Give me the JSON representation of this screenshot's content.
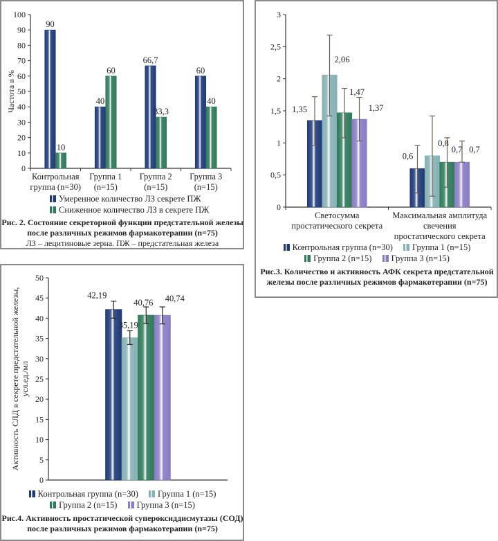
{
  "chart_data": [
    {
      "id": "fig2",
      "type": "bar",
      "ylabel": "Частота в %",
      "ylim": [
        0,
        100
      ],
      "yticks": [
        "0",
        "10",
        "20",
        "30",
        "40",
        "50",
        "60",
        "70",
        "80",
        "90",
        "100"
      ],
      "categories": [
        "Контрольная группа (n=30)",
        "Группа 1 (n=15)",
        "Группа 2 (n=15)",
        "Группа 3 (n=15)"
      ],
      "category_lines": [
        [
          "Контрольная",
          "группа (n=30)"
        ],
        [
          "Группа 1",
          "(n=15)"
        ],
        [
          "Группа 2",
          "(n=15)"
        ],
        [
          "Группа 3",
          "(n=15)"
        ]
      ],
      "series": [
        {
          "name": "Умеренное количество ЛЗ  секрете ПЖ",
          "values": [
            90,
            40,
            66.7,
            60
          ],
          "labels": [
            "90",
            "40",
            "66,7",
            "60"
          ],
          "color": "#1f3a78"
        },
        {
          "name": "Сниженное количество ЛЗ в секрете ПЖ",
          "values": [
            10,
            60,
            33.3,
            40
          ],
          "labels": [
            "10",
            "60",
            "33,3",
            "40"
          ],
          "color": "#2f7a5a"
        }
      ],
      "legend_position": "bottom",
      "grid": false,
      "caption_bold": "Рис. 2. Состояние секреторной функции предстательной железы после различных режимов фармакотерапии (n=75)",
      "caption_bold_lines": [
        "Рис. 2. Состояние секреторной функции предстательной железы",
        "после различных режимов фармакотерапии (n=75)"
      ],
      "caption_note": "ЛЗ – лецитиновые зерна. ПЖ – предстательная железа"
    },
    {
      "id": "fig3",
      "type": "bar",
      "ylim": [
        0,
        3
      ],
      "yticks": [
        "0",
        "0,5",
        "1",
        "1,5",
        "2",
        "2,5",
        "3"
      ],
      "categories": [
        "Светосумма простатического секрета",
        "Максимальная амплитуда свечения простатического секрета"
      ],
      "category_lines": [
        [
          "Светосумма",
          "простатического секрета"
        ],
        [
          "Максимальная амплитуда",
          "свечения",
          "простатического секрета"
        ]
      ],
      "series": [
        {
          "name": "Контрольная группа (n=30)",
          "values": [
            1.35,
            0.6
          ],
          "labels": [
            "1,35",
            "0,6"
          ],
          "error_low": [
            0.96,
            0.22
          ],
          "error_high": [
            1.72,
            0.96
          ],
          "color": "#1f3a78"
        },
        {
          "name": "Группа 1 (n=15)",
          "values": [
            2.06,
            0.8
          ],
          "labels": [
            "2,06",
            "0,8"
          ],
          "error_low": [
            1.42,
            0.17
          ],
          "error_high": [
            2.68,
            1.42
          ],
          "color": "#86b1b5"
        },
        {
          "name": "Группа 2 (n=15)",
          "values": [
            1.47,
            0.7
          ],
          "labels": [
            "1,47",
            "0,7"
          ],
          "error_low": [
            1.08,
            0.31
          ],
          "error_high": [
            1.85,
            1.08
          ],
          "color": "#2f7a5a"
        },
        {
          "name": "Группа 3 (n=15)",
          "values": [
            1.37,
            0.7
          ],
          "labels": [
            "1,37",
            "0,7"
          ],
          "error_low": [
            1.03,
            0.7
          ],
          "error_high": [
            1.71,
            1.03
          ],
          "color": "#8a7cc4"
        }
      ],
      "legend_position": "bottom",
      "grid": false,
      "caption_bold": "Рис.3. Количество и активность АФК секрета предстательной железы  после различных режимов фармакотерапии (n=75)",
      "caption_bold_lines": [
        "Рис.3. Количество и активность АФК секрета предстательной",
        "железы  после различных режимов фармакотерапии (n=75)"
      ]
    },
    {
      "id": "fig4",
      "type": "bar",
      "ylabel": "Активность СЛД в секрете предстательной железы, усл.ед./мл",
      "ylabel_lines": [
        "Активность СЛД в секрете предстательной железы,",
        "усл.ед./мл"
      ],
      "ylim": [
        0,
        50
      ],
      "yticks": [
        "0",
        "5",
        "10",
        "15",
        "20",
        "25",
        "30",
        "35",
        "40",
        "45",
        "50"
      ],
      "categories": [
        ""
      ],
      "series": [
        {
          "name": "Контрольная группа (n=30)",
          "values": [
            42.19
          ],
          "labels": [
            "42,19"
          ],
          "error_low": [
            40.0
          ],
          "error_high": [
            44.2
          ],
          "color": "#1f3a78"
        },
        {
          "name": "Группа 1 (n=15)",
          "values": [
            35.19
          ],
          "labels": [
            "35,19"
          ],
          "error_low": [
            33.5
          ],
          "error_high": [
            36.9
          ],
          "color": "#86b1b5"
        },
        {
          "name": "Группа 2 (n=15)",
          "values": [
            40.76
          ],
          "labels": [
            "40,76"
          ],
          "error_low": [
            38.7
          ],
          "error_high": [
            42.8
          ],
          "color": "#2f7a5a"
        },
        {
          "name": "Группа 3 (n=15)",
          "values": [
            40.74
          ],
          "labels": [
            "40,74"
          ],
          "error_low": [
            38.6
          ],
          "error_high": [
            42.8
          ],
          "color": "#8a7cc4"
        }
      ],
      "legend_position": "bottom",
      "grid": false,
      "caption_bold": "Рис.4. Активность простатической супероксиддисмутазы (СОД) после различных режимов фармакотерапии (n=75)",
      "caption_bold_lines": [
        "Рис.4. Активность простатической супероксиддисмутазы (СОД)",
        "после различных режимов фармакотерапии (n=75)"
      ]
    }
  ]
}
